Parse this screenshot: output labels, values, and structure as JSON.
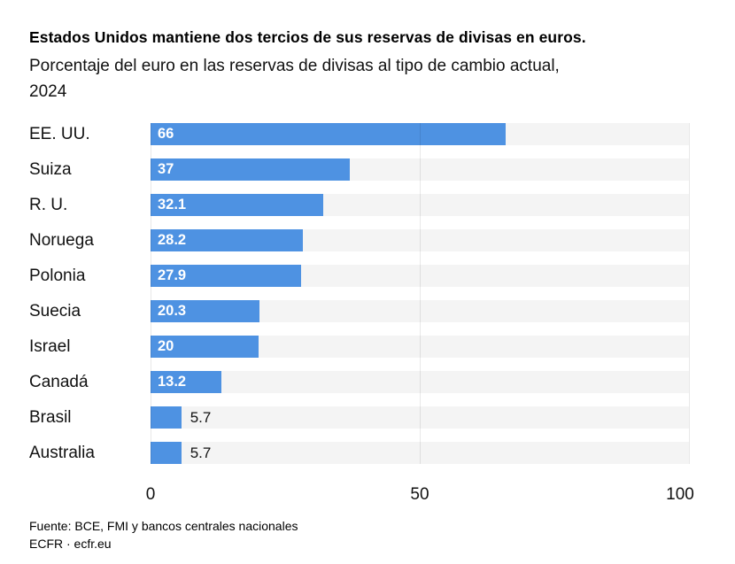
{
  "header": {
    "title": "Estados Unidos mantiene dos tercios de sus reservas de divisas en euros.",
    "subtitle_line1": "Porcentaje del euro en las reservas de divisas al tipo de cambio actual,",
    "subtitle_line2": "2024"
  },
  "chart_data": {
    "type": "bar",
    "orientation": "horizontal",
    "title": "Estados Unidos mantiene dos tercios de sus reservas de divisas en euros.",
    "subtitle": "Porcentaje del euro en las reservas de divisas al tipo de cambio actual, 2024",
    "categories": [
      "EE. UU.",
      "Suiza",
      "R. U.",
      "Noruega",
      "Polonia",
      "Suecia",
      "Israel",
      "Canadá",
      "Brasil",
      "Australia"
    ],
    "values": [
      66,
      37,
      32.1,
      28.2,
      27.9,
      20.3,
      20,
      13.2,
      5.7,
      5.7
    ],
    "value_labels": [
      "66",
      "37",
      "32.1",
      "28.2",
      "27.9",
      "20.3",
      "20",
      "13.2",
      "5.7",
      "5.7"
    ],
    "xlim": [
      0,
      100
    ],
    "x_ticks": [
      0,
      50,
      100
    ],
    "x_tick_labels": [
      "0",
      "50",
      "100"
    ],
    "grid": true,
    "legend": "none",
    "bar_color": "#4e92e2",
    "track_color": "#f4f4f4",
    "inside_label_color": "#ffffff",
    "outside_label_color": "#111111"
  },
  "footer": {
    "source": "Fuente: BCE, FMI y bancos centrales nacionales",
    "credit": "ECFR · ecfr.eu"
  }
}
